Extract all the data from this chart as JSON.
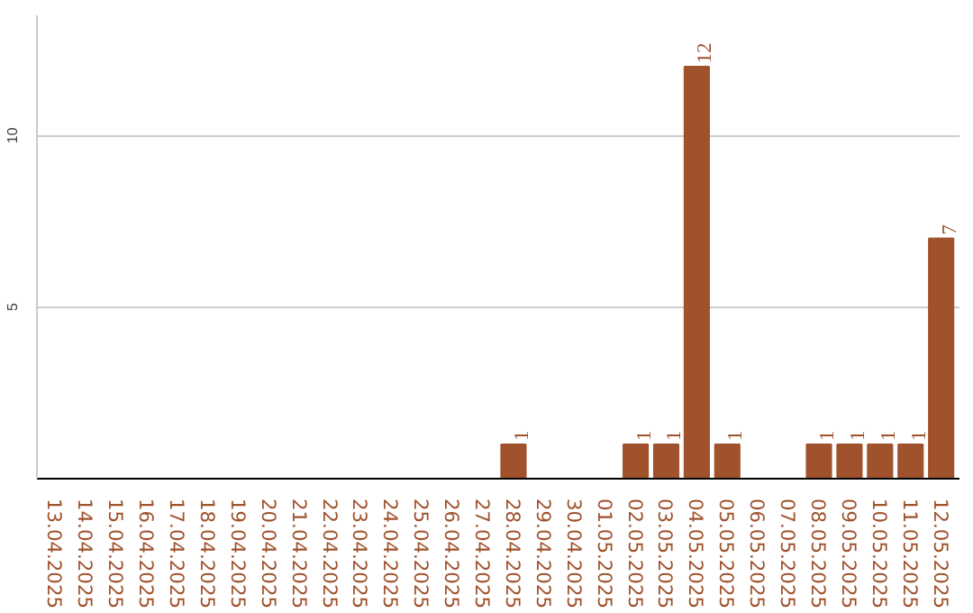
{
  "chart_data": {
    "type": "bar",
    "categories": [
      "13.04.2025",
      "14.04.2025",
      "15.04.2025",
      "16.04.2025",
      "17.04.2025",
      "18.04.2025",
      "19.04.2025",
      "20.04.2025",
      "21.04.2025",
      "22.04.2025",
      "23.04.2025",
      "24.04.2025",
      "25.04.2025",
      "26.04.2025",
      "27.04.2025",
      "28.04.2025",
      "29.04.2025",
      "30.04.2025",
      "01.05.2025",
      "02.05.2025",
      "03.05.2025",
      "04.05.2025",
      "05.05.2025",
      "06.05.2025",
      "07.05.2025",
      "08.05.2025",
      "09.05.2025",
      "10.05.2025",
      "11.05.2025",
      "12.05.2025"
    ],
    "values": [
      0,
      0,
      0,
      0,
      0,
      0,
      0,
      0,
      0,
      0,
      0,
      0,
      0,
      0,
      0,
      1,
      0,
      0,
      0,
      1,
      1,
      12,
      1,
      0,
      0,
      1,
      1,
      1,
      1,
      7
    ],
    "value_labels": [
      null,
      null,
      null,
      null,
      null,
      null,
      null,
      null,
      null,
      null,
      null,
      null,
      null,
      null,
      null,
      "1",
      null,
      null,
      null,
      "1",
      "1",
      "12",
      "1",
      null,
      null,
      "1",
      "1",
      "1",
      "1",
      "7"
    ],
    "color": "#a0522d",
    "ylim": [
      0,
      13.5
    ],
    "yticks": [
      5,
      10
    ],
    "grid": "y"
  }
}
